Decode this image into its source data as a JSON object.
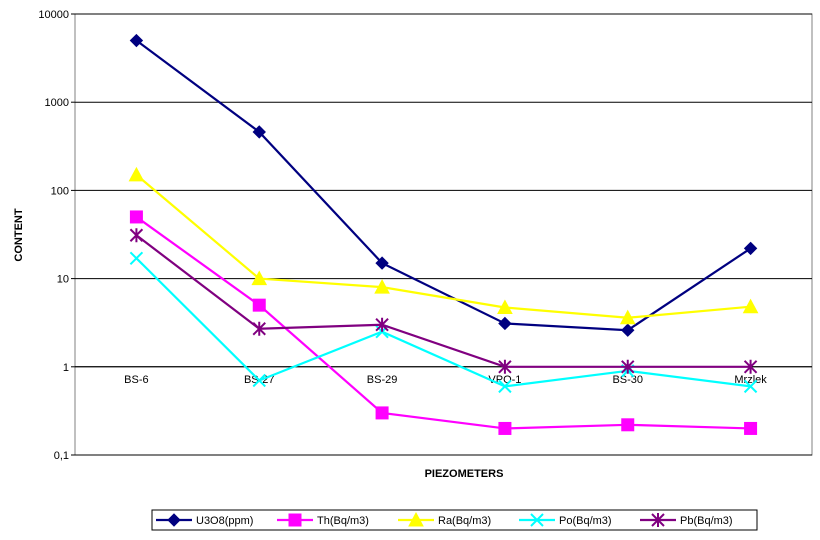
{
  "chart_data": {
    "type": "line",
    "x_label": "PIEZOMETERS",
    "y_label": "CONTENT",
    "categories": [
      "BS-6",
      "BS-27",
      "BS-29",
      "VPO-1",
      "BS-30",
      "Mrzlek"
    ],
    "log_scale": true,
    "grid": true,
    "ylim": [
      0.1,
      10000
    ],
    "yticks": [
      {
        "value": 0.1,
        "label": "0,1"
      },
      1,
      10,
      100,
      1000,
      10000
    ],
    "series": [
      {
        "name": "U3O8(ppm)",
        "color": "#000080",
        "marker": "diamond",
        "values": [
          5000,
          460,
          15,
          3.1,
          2.6,
          22
        ]
      },
      {
        "name": "Th(Bq/m3)",
        "color": "#ff00ff",
        "marker": "square",
        "values": [
          50,
          5,
          0.3,
          0.2,
          0.22,
          0.2
        ]
      },
      {
        "name": "Ra(Bq/m3)",
        "color": "#ffff00",
        "marker": "triangle",
        "values": [
          150,
          10,
          8,
          4.7,
          3.6,
          4.8
        ]
      },
      {
        "name": "Po(Bq/m3)",
        "color": "#00ffff",
        "marker": "x",
        "values": [
          17,
          0.7,
          2.5,
          0.6,
          0.9,
          0.6
        ]
      },
      {
        "name": "Pb(Bq/m3)",
        "color": "#800080",
        "marker": "star",
        "values": [
          31,
          2.7,
          3,
          1,
          1,
          1
        ]
      }
    ],
    "legend": "bottom"
  }
}
